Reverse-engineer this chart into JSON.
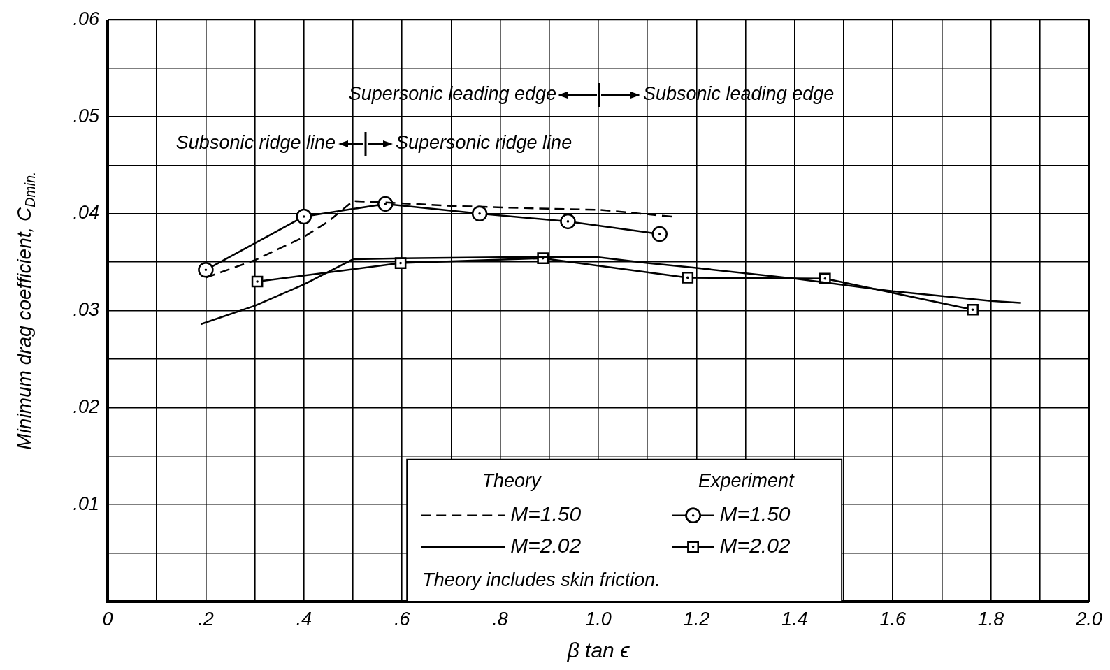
{
  "chart_data": {
    "type": "line",
    "xlabel": "β tan ϵ",
    "ylabel": "Minimum drag coefficient, C$_{Dmin.}$",
    "xlim": [
      0,
      2.0
    ],
    "ylim": [
      0,
      0.06
    ],
    "xticks": [
      {
        "value": 0,
        "label": "0"
      },
      {
        "value": 0.1,
        "label": null
      },
      {
        "value": 0.2,
        "label": ".2"
      },
      {
        "value": 0.3,
        "label": null
      },
      {
        "value": 0.4,
        "label": ".4"
      },
      {
        "value": 0.5,
        "label": null
      },
      {
        "value": 0.6,
        "label": ".6"
      },
      {
        "value": 0.7,
        "label": null
      },
      {
        "value": 0.8,
        "label": ".8"
      },
      {
        "value": 0.9,
        "label": null
      },
      {
        "value": 1.0,
        "label": "1.0"
      },
      {
        "value": 1.1,
        "label": null
      },
      {
        "value": 1.2,
        "label": "1.2"
      },
      {
        "value": 1.3,
        "label": null
      },
      {
        "value": 1.4,
        "label": "1.4"
      },
      {
        "value": 1.5,
        "label": null
      },
      {
        "value": 1.6,
        "label": "1.6"
      },
      {
        "value": 1.7,
        "label": null
      },
      {
        "value": 1.8,
        "label": "1.8"
      },
      {
        "value": 1.9,
        "label": null
      },
      {
        "value": 2.0,
        "label": "2.0"
      }
    ],
    "yticks": [
      {
        "value": 0,
        "label": null
      },
      {
        "value": 0.005,
        "label": null
      },
      {
        "value": 0.01,
        "label": ".01"
      },
      {
        "value": 0.015,
        "label": null
      },
      {
        "value": 0.02,
        "label": ".02"
      },
      {
        "value": 0.025,
        "label": null
      },
      {
        "value": 0.03,
        "label": ".03"
      },
      {
        "value": 0.035,
        "label": null
      },
      {
        "value": 0.04,
        "label": ".04"
      },
      {
        "value": 0.045,
        "label": null
      },
      {
        "value": 0.05,
        "label": ".05"
      },
      {
        "value": 0.055,
        "label": null
      },
      {
        "value": 0.06,
        "label": ".06"
      }
    ],
    "grid": true,
    "legend": "bottom",
    "series": [
      {
        "name": "M=1.50",
        "color": "#000000",
        "marker": "none",
        "line_style": "dashed",
        "x": [
          0.2,
          0.3,
          0.4,
          0.45,
          0.5,
          0.55,
          0.7,
          0.9,
          1.0,
          1.15
        ],
        "values": [
          0.0334,
          0.0352,
          0.0376,
          0.0392,
          0.0413,
          0.0412,
          0.0408,
          0.0405,
          0.0404,
          0.0397
        ]
      },
      {
        "name": "M=2.02",
        "color": "#000000",
        "marker": "none",
        "line_style": "solid",
        "x": [
          0.19,
          0.3,
          0.4,
          0.5,
          0.6,
          0.8,
          1.0,
          1.1,
          1.2,
          1.4,
          1.6,
          1.8,
          1.86
        ],
        "values": [
          0.0286,
          0.0305,
          0.0327,
          0.0353,
          0.0354,
          0.0355,
          0.0355,
          0.0349,
          0.0344,
          0.0333,
          0.032,
          0.031,
          0.0308
        ]
      },
      {
        "name": "M=1.50",
        "color": "#000000",
        "marker": "circle",
        "line_style": "solid",
        "x": [
          0.2,
          0.4,
          0.566,
          0.758,
          0.938,
          1.125
        ],
        "values": [
          0.0342,
          0.0397,
          0.041,
          0.04,
          0.0392,
          0.0379
        ]
      },
      {
        "name": "M=2.02",
        "color": "#000000",
        "marker": "square",
        "line_style": "solid",
        "x": [
          0.305,
          0.597,
          0.887,
          1.182,
          1.462,
          1.763
        ],
        "values": [
          0.033,
          0.0349,
          0.0354,
          0.0334,
          0.0333,
          0.0301
        ]
      }
    ],
    "annotations": [
      "Supersonic leading edge",
      "Subsonic leading edge",
      "Subsonic ridge line",
      "Supersonic ridge line",
      "Theory",
      "Experiment",
      "Theory includes skin friction."
    ]
  }
}
